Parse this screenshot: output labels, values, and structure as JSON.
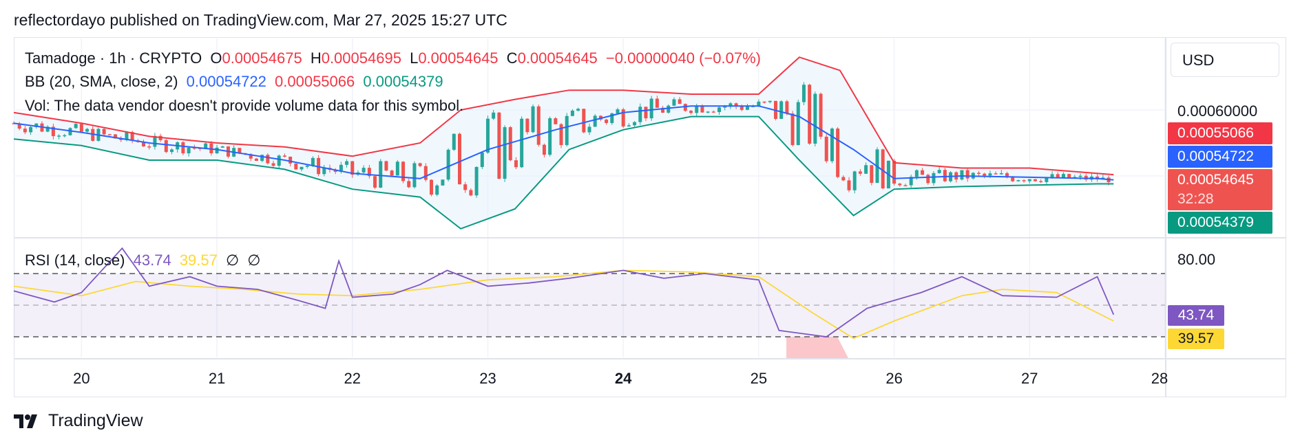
{
  "header": {
    "publish_line": "reflectordayo published on TradingView.com, Mar 27, 2025 15:27 UTC"
  },
  "legend": {
    "symbol": "Tamadoge · 1h · CRYPTO",
    "o_label": "O",
    "o_value": "0.00054675",
    "h_label": "H",
    "h_value": "0.00054695",
    "l_label": "L",
    "l_value": "0.00054645",
    "c_label": "C",
    "c_value": "0.00054645",
    "change": "−0.00000040 (−0.07%)",
    "bb_label": "BB (20, SMA, close, 2)",
    "bb_basis": "0.00054722",
    "bb_upper": "0.00055066",
    "bb_lower": "0.00054379",
    "vol_note": "Vol: The data vendor doesn't provide volume data for this symbol.",
    "rsi_label": "RSI (14, close)",
    "rsi_value": "43.74",
    "rsi_ma": "39.57",
    "rsi_extra1": "∅",
    "rsi_extra2": "∅"
  },
  "currency_button": "USD",
  "price_labels": {
    "axis_level": "0.00060000",
    "upper": "0.00055066",
    "basis": "0.00054722",
    "last": "0.00054645",
    "countdown": "32:28",
    "lower": "0.00054379"
  },
  "rsi_axis": {
    "level": "80.00",
    "rsi": "43.74",
    "ma": "39.57"
  },
  "x_ticks": [
    "20",
    "21",
    "22",
    "23",
    "24",
    "25",
    "26",
    "27",
    "28"
  ],
  "footer": {
    "brand": "TradingView"
  },
  "colors": {
    "up": "#26a69a",
    "down": "#ef5350",
    "bb_upper": "#f23645",
    "bb_basis": "#2962ff",
    "bb_lower": "#089981",
    "rsi": "#7e57c2",
    "rsi_ma": "#fdd835"
  },
  "chart_data": {
    "type": "line",
    "title": "Tamadoge · 1h · CRYPTO",
    "x_range": [
      "Mar 19",
      "Mar 28"
    ],
    "y_tick": 0.0006,
    "series": [
      {
        "name": "BB upper",
        "points": [
          [
            19.5,
            0.000598
          ],
          [
            20.0,
            0.00059
          ],
          [
            20.5,
            0.00058
          ],
          [
            21.0,
            0.000575
          ],
          [
            21.5,
            0.000572
          ],
          [
            22.0,
            0.000565
          ],
          [
            22.5,
            0.000575
          ],
          [
            22.8,
            0.0006
          ],
          [
            23.2,
            0.000608
          ],
          [
            23.6,
            0.000615
          ],
          [
            24.0,
            0.000615
          ],
          [
            24.5,
            0.000612
          ],
          [
            25.0,
            0.000612
          ],
          [
            25.3,
            0.00064
          ],
          [
            25.6,
            0.00063
          ],
          [
            26.0,
            0.00056
          ],
          [
            26.5,
            0.000556
          ],
          [
            27.0,
            0.000556
          ],
          [
            27.5,
            0.000552
          ],
          [
            27.62,
            0.000551
          ]
        ]
      },
      {
        "name": "BB basis",
        "points": [
          [
            19.5,
            0.00059
          ],
          [
            20.0,
            0.000583
          ],
          [
            20.5,
            0.000575
          ],
          [
            21.0,
            0.00057
          ],
          [
            21.5,
            0.000562
          ],
          [
            22.0,
            0.000552
          ],
          [
            22.5,
            0.000548
          ],
          [
            23.0,
            0.00057
          ],
          [
            23.5,
            0.000585
          ],
          [
            24.0,
            0.000598
          ],
          [
            24.5,
            0.000603
          ],
          [
            25.0,
            0.000603
          ],
          [
            25.3,
            0.000595
          ],
          [
            25.7,
            0.00057
          ],
          [
            26.0,
            0.000548
          ],
          [
            26.5,
            0.00055
          ],
          [
            27.0,
            0.000549
          ],
          [
            27.5,
            0.000548
          ],
          [
            27.62,
            0.000547
          ]
        ]
      },
      {
        "name": "BB lower",
        "points": [
          [
            19.5,
            0.000578
          ],
          [
            20.0,
            0.000573
          ],
          [
            20.5,
            0.000562
          ],
          [
            21.0,
            0.000562
          ],
          [
            21.5,
            0.000555
          ],
          [
            22.0,
            0.00054
          ],
          [
            22.5,
            0.000534
          ],
          [
            22.8,
            0.00051
          ],
          [
            23.2,
            0.000525
          ],
          [
            23.6,
            0.00057
          ],
          [
            24.0,
            0.000585
          ],
          [
            24.5,
            0.000595
          ],
          [
            25.0,
            0.000595
          ],
          [
            25.3,
            0.000562
          ],
          [
            25.7,
            0.00052
          ],
          [
            26.0,
            0.00054
          ],
          [
            26.5,
            0.000542
          ],
          [
            27.0,
            0.000543
          ],
          [
            27.5,
            0.000544
          ],
          [
            27.62,
            0.000544
          ]
        ]
      },
      {
        "name": "RSI",
        "points": [
          [
            19.5,
            59
          ],
          [
            19.8,
            52
          ],
          [
            20.0,
            58
          ],
          [
            20.3,
            86
          ],
          [
            20.5,
            62
          ],
          [
            20.8,
            68
          ],
          [
            21.0,
            62
          ],
          [
            21.3,
            60
          ],
          [
            21.6,
            53
          ],
          [
            21.8,
            48
          ],
          [
            21.9,
            78
          ],
          [
            22.0,
            55
          ],
          [
            22.3,
            57
          ],
          [
            22.5,
            63
          ],
          [
            22.7,
            72
          ],
          [
            23.0,
            62
          ],
          [
            23.3,
            64
          ],
          [
            23.6,
            67
          ],
          [
            24.0,
            72
          ],
          [
            24.3,
            67
          ],
          [
            24.6,
            70
          ],
          [
            25.0,
            66
          ],
          [
            25.15,
            34
          ],
          [
            25.5,
            30
          ],
          [
            25.8,
            48
          ],
          [
            26.2,
            58
          ],
          [
            26.5,
            68
          ],
          [
            26.8,
            56
          ],
          [
            27.2,
            55
          ],
          [
            27.5,
            68
          ],
          [
            27.62,
            44
          ]
        ]
      },
      {
        "name": "RSI MA",
        "points": [
          [
            19.5,
            62
          ],
          [
            20.0,
            56
          ],
          [
            20.4,
            65
          ],
          [
            20.8,
            62
          ],
          [
            21.2,
            60
          ],
          [
            21.6,
            57
          ],
          [
            22.0,
            56
          ],
          [
            22.5,
            60
          ],
          [
            23.0,
            66
          ],
          [
            23.5,
            68
          ],
          [
            24.0,
            72
          ],
          [
            24.5,
            71
          ],
          [
            25.0,
            68
          ],
          [
            25.4,
            45
          ],
          [
            25.7,
            29
          ],
          [
            26.0,
            40
          ],
          [
            26.5,
            56
          ],
          [
            26.8,
            60
          ],
          [
            27.2,
            58
          ],
          [
            27.62,
            40
          ]
        ]
      }
    ],
    "rsi_levels": [
      70,
      50,
      30
    ],
    "grid": true,
    "legend": "top-left"
  }
}
